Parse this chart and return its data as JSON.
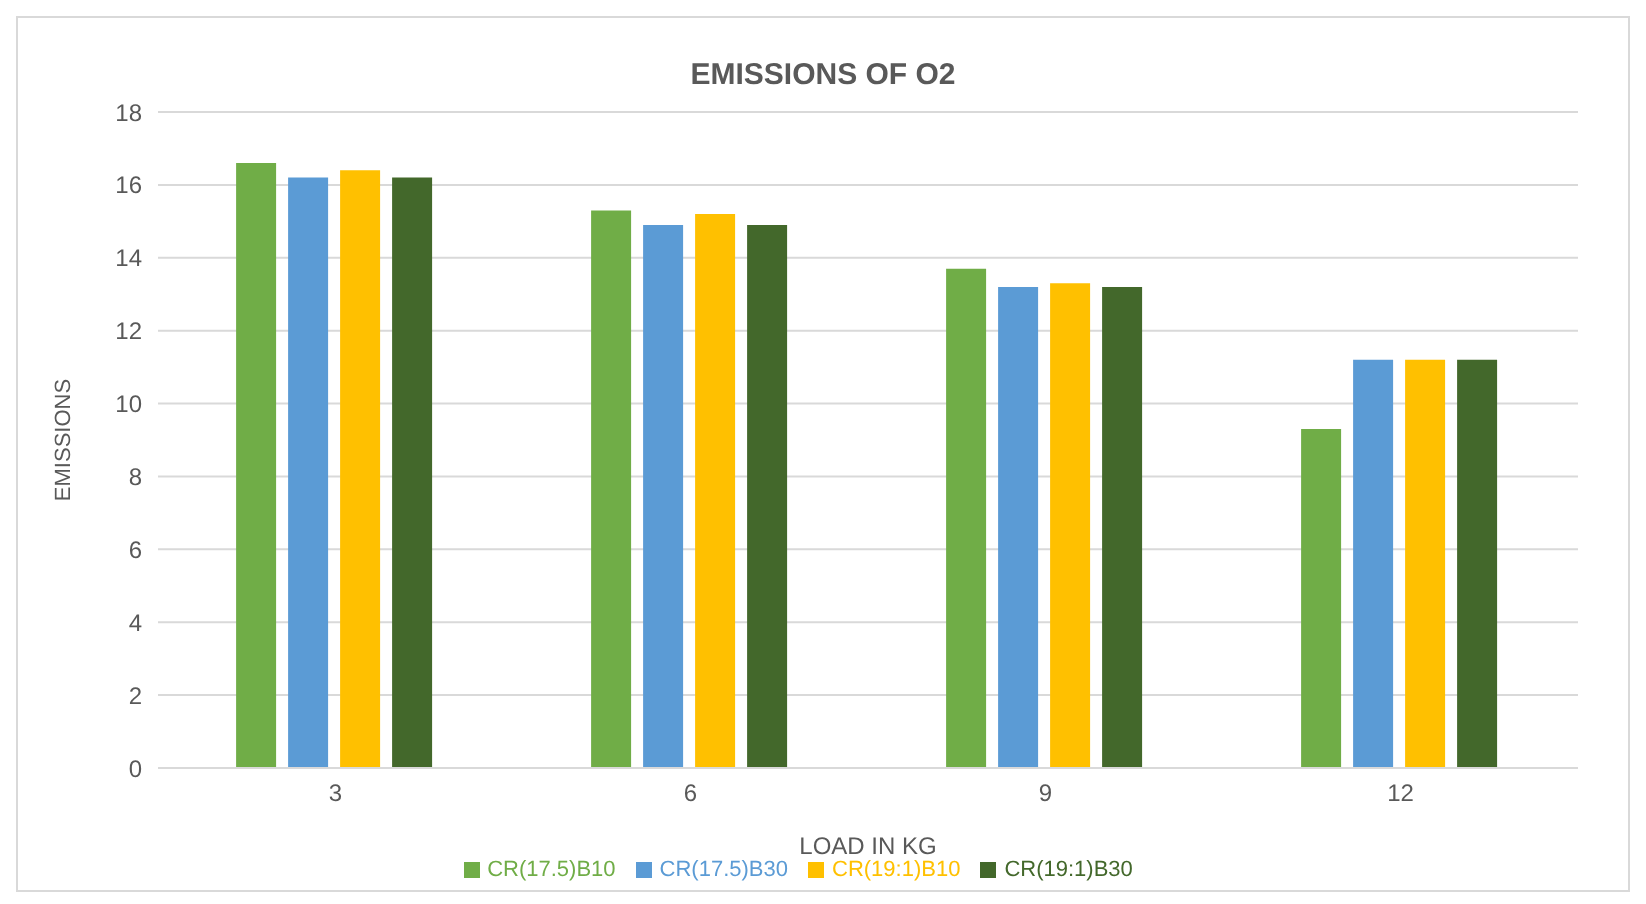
{
  "chart_data": {
    "type": "bar",
    "title": "EMISSIONS OF O2",
    "xlabel": "LOAD IN KG",
    "ylabel": "EMISSIONS",
    "categories": [
      "3",
      "6",
      "9",
      "12"
    ],
    "series": [
      {
        "name": "CR(17.5)B10",
        "color": "#70ad47",
        "values": [
          16.6,
          15.3,
          13.7,
          9.3
        ]
      },
      {
        "name": "CR(17.5)B30",
        "color": "#5b9bd5",
        "values": [
          16.2,
          14.9,
          13.2,
          11.2
        ]
      },
      {
        "name": "CR(19:1)B10",
        "color": "#ffc000",
        "values": [
          16.4,
          15.2,
          13.3,
          11.2
        ]
      },
      {
        "name": "CR(19:1)B30",
        "color": "#43682b",
        "values": [
          16.2,
          14.9,
          13.2,
          11.2
        ]
      }
    ],
    "ylim": [
      0,
      18
    ],
    "yticks": [
      0,
      2,
      4,
      6,
      8,
      10,
      12,
      14,
      16,
      18
    ],
    "grid": "y",
    "legend": "bottom"
  }
}
